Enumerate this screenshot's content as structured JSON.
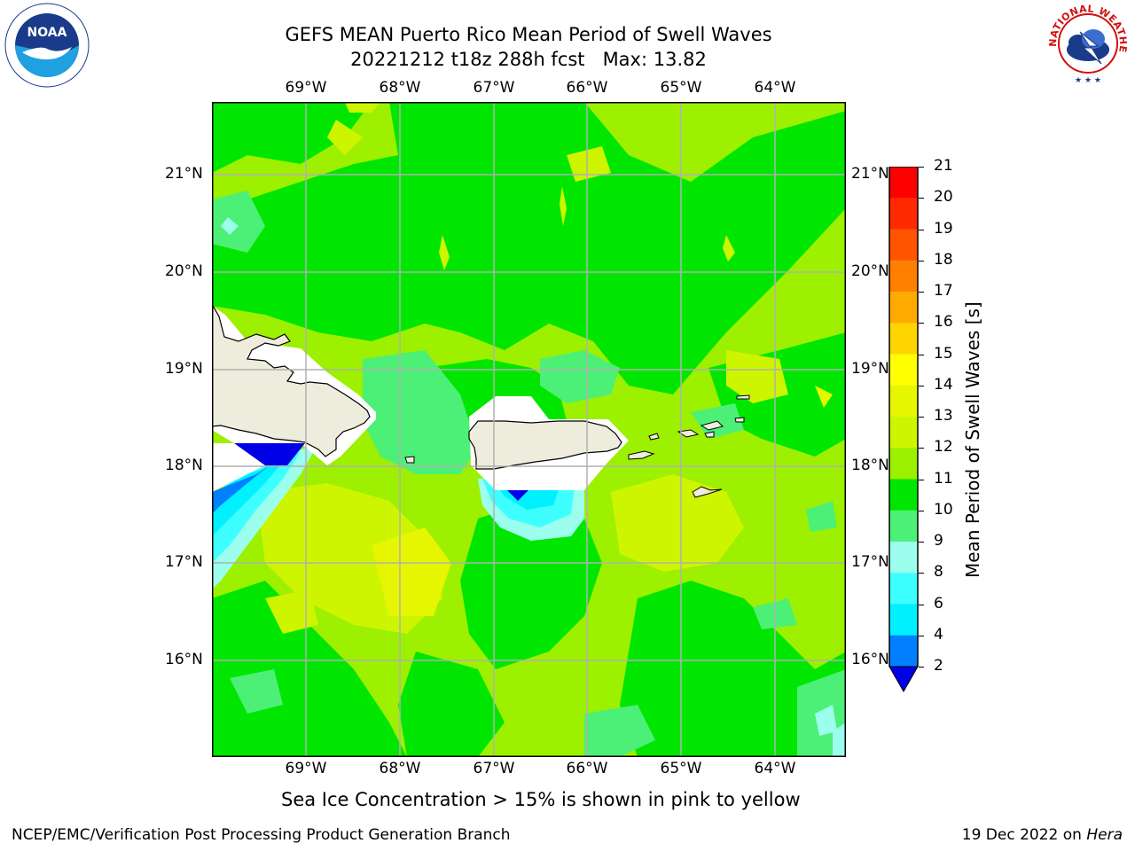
{
  "title": {
    "line1": "GEFS MEAN Puerto Rico Mean Period of Swell Waves",
    "line2": "20221212 t18z 288h fcst   Max: 13.82"
  },
  "logos": {
    "left": "noaa-logo",
    "right": "national-weather-service-logo",
    "right_text": "NATIONAL WEATHER SERVICE"
  },
  "map": {
    "lon_labels": [
      "69°W",
      "68°W",
      "67°W",
      "66°W",
      "65°W",
      "64°W"
    ],
    "lat_labels": [
      "21°N",
      "20°N",
      "19°N",
      "18°N",
      "17°N",
      "16°N"
    ],
    "land_color": "#eeecdc",
    "grid_color": "#b0b0b0"
  },
  "colorbar": {
    "title": "Mean Period of Swell Waves [s]",
    "ticks": [
      "21",
      "20",
      "19",
      "18",
      "17",
      "16",
      "15",
      "14",
      "13",
      "12",
      "11",
      "10",
      "9",
      "8",
      "6",
      "4",
      "2"
    ],
    "colors": [
      "#ff0000",
      "#ff2a00",
      "#ff5500",
      "#ff8000",
      "#ffaa00",
      "#ffd500",
      "#ffff00",
      "#e6f500",
      "#cef500",
      "#9cf000",
      "#00e600",
      "#4cf076",
      "#9cffee",
      "#3effff",
      "#00f0ff",
      "#0080ff",
      "#0000e6"
    ]
  },
  "note": "Sea Ice Concentration > 15% is shown in pink to yellow",
  "footer": {
    "left": "NCEP/EMC/Verification Post Processing Product Generation Branch",
    "right_prefix": "19 Dec 2022 on ",
    "right_machine": "Hera"
  }
}
